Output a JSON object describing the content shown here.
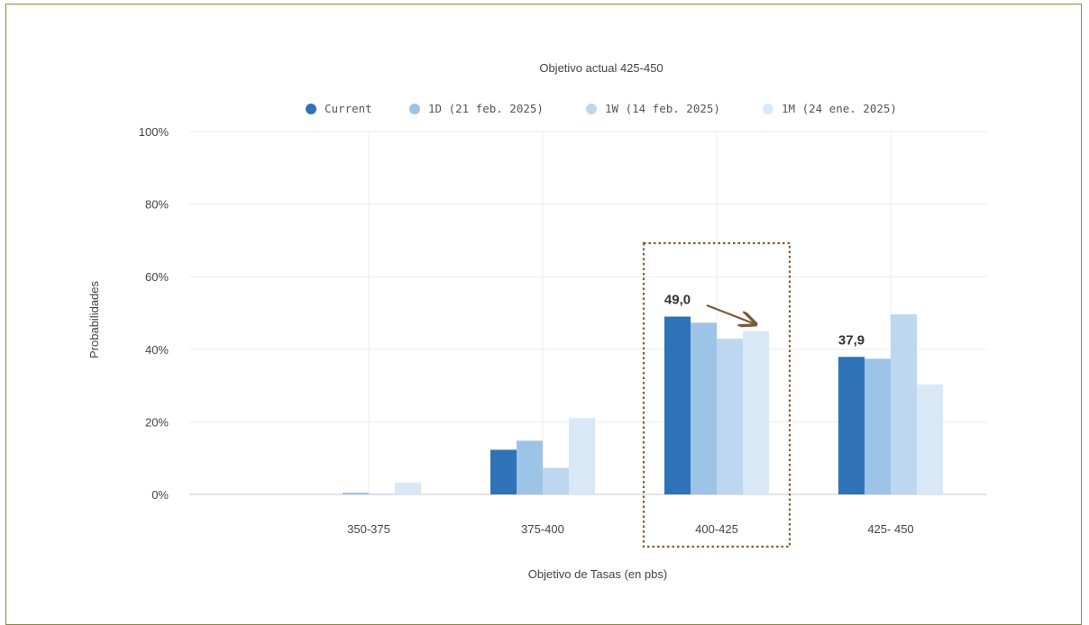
{
  "chart_data": {
    "type": "bar",
    "title": "Objetivo actual 425-450",
    "xlabel": "Objetivo de Tasas (en pbs)",
    "ylabel": "Probabilidades",
    "ylim": [
      0,
      100
    ],
    "y_ticks": [
      "0%",
      "20%",
      "40%",
      "60%",
      "80%",
      "100%"
    ],
    "grid": true,
    "legend_position": "top",
    "categories": [
      "350-375",
      "375-400",
      "400-425",
      "425- 450"
    ],
    "series": [
      {
        "name": "Current",
        "color": "#2e72b8",
        "values": [
          0.0,
          12.3,
          49.0,
          37.9
        ]
      },
      {
        "name": "1D (21 feb. 2025)",
        "color": "#9dc3e6",
        "values": [
          0.5,
          14.8,
          47.3,
          37.4
        ]
      },
      {
        "name": "1W (14 feb. 2025)",
        "color": "#bcd7ef",
        "values": [
          0.2,
          7.3,
          42.9,
          49.6
        ]
      },
      {
        "name": "1M (24 ene. 2025)",
        "color": "#d9e8f6",
        "values": [
          3.3,
          21.0,
          45.0,
          30.3
        ]
      }
    ],
    "annotations": [
      {
        "text": "49,0",
        "category": "400-425",
        "series": "Current"
      },
      {
        "text": "37,9",
        "category": "425- 450",
        "series": "Current"
      }
    ],
    "highlight": {
      "category": "400-425",
      "style": "dotted box",
      "color": "#8a5a2b"
    },
    "arrow_color": "#7a5a3a"
  }
}
